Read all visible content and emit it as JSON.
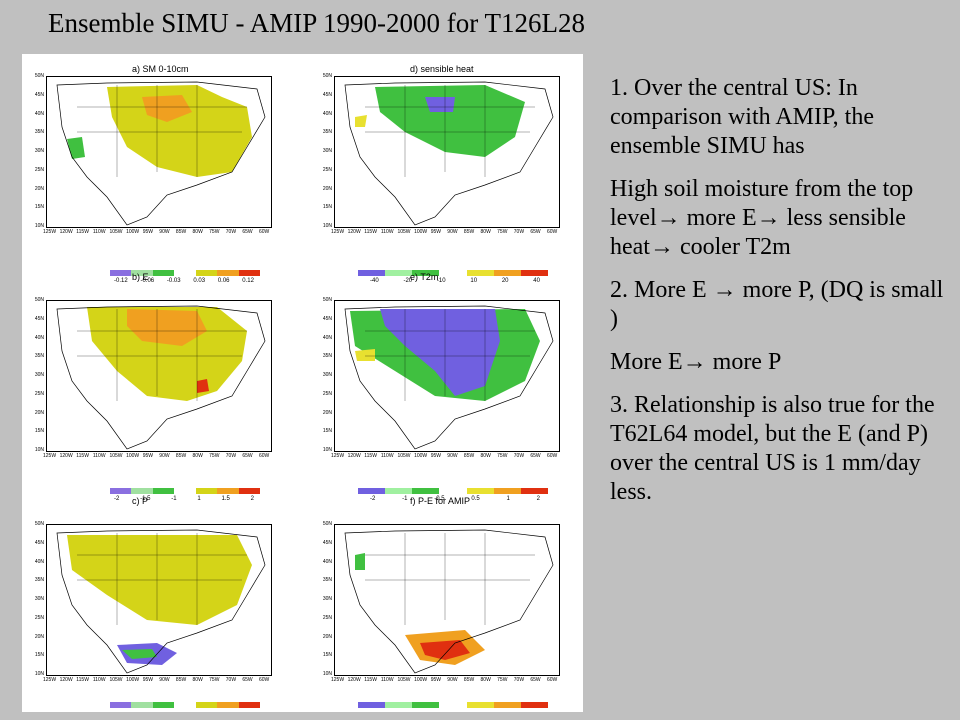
{
  "slide": {
    "title": "Ensemble SIMU - AMIP 1990-2000 for T126L28"
  },
  "map_axes": {
    "lat_labels": [
      "50N",
      "45N",
      "40N",
      "35N",
      "30N",
      "25N",
      "20N",
      "15N",
      "10N"
    ],
    "lon_labels": [
      "125W",
      "120W",
      "115W",
      "110W",
      "105W",
      "100W",
      "95W",
      "90W",
      "85W",
      "80W",
      "75W",
      "70W",
      "65W",
      "60W"
    ]
  },
  "panels": [
    {
      "id": "a",
      "title": "a)  SM 0-10cm",
      "colorbar": [
        "#8a6fe0",
        "#a0e0a0",
        "#40c040",
        "#ffffff",
        "#d4d418",
        "#f0a020",
        "#e03010"
      ],
      "colorbar_labels": [
        "-0.12",
        "-0.06",
        "-0.03",
        "0.03",
        "0.06",
        "0.12"
      ]
    },
    {
      "id": "d",
      "title": "d)  sensible heat",
      "colorbar": [
        "#7060e0",
        "#a0f0a0",
        "#40c040",
        "#ffffff",
        "#e8e030",
        "#f0a020",
        "#e03010"
      ],
      "colorbar_labels": [
        "-40",
        "-20",
        "-10",
        "10",
        "20",
        "40"
      ]
    },
    {
      "id": "b",
      "title": "b)  E",
      "colorbar": [
        "#8a6fe0",
        "#a0e0a0",
        "#40c040",
        "#ffffff",
        "#d4d418",
        "#f0a020",
        "#e03010"
      ],
      "colorbar_labels": [
        "-2",
        "-1.5",
        "-1",
        "1",
        "1.5",
        "2"
      ]
    },
    {
      "id": "e",
      "title": "e)  T2m",
      "colorbar": [
        "#7060e0",
        "#a0f0a0",
        "#40c040",
        "#ffffff",
        "#e8e030",
        "#f0a020",
        "#e03010"
      ],
      "colorbar_labels": [
        "-2",
        "-1",
        "-0.5",
        "0.5",
        "1",
        "2"
      ]
    },
    {
      "id": "c",
      "title": "c)  P",
      "colorbar": [
        "#8a6fe0",
        "#a0e0a0",
        "#40c040",
        "#ffffff",
        "#d4d418",
        "#f0a020",
        "#e03010"
      ],
      "colorbar_labels": []
    },
    {
      "id": "f",
      "title": "f)  P-E  for  AMIP",
      "colorbar": [
        "#7060e0",
        "#a0f0a0",
        "#40c040",
        "#ffffff",
        "#e8e030",
        "#f0a020",
        "#e03010"
      ],
      "colorbar_labels": []
    }
  ],
  "notes": [
    "1. Over the central US: In comparison with AMIP, the  ensemble SIMU has",
    "High soil moisture from the top level→ more E→ less sensible heat→ cooler T2m",
    "2.  More E → more P, (DQ is small )",
    "More E→ more P",
    "3. Relationship is also true for the T62L64 model, but the E  (and P) over the central US is 1 mm/day less."
  ]
}
